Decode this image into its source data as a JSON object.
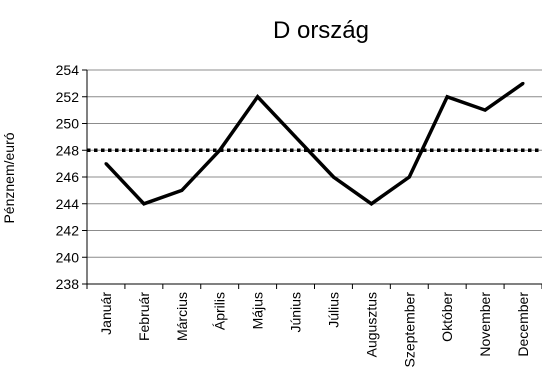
{
  "chart_data": {
    "type": "line",
    "title": "D ország",
    "xlabel": "",
    "ylabel": "Pénznem/euró",
    "categories": [
      "Január",
      "Február",
      "Március",
      "Április",
      "Május",
      "Június",
      "Július",
      "Augusztus",
      "Szeptember",
      "Október",
      "November",
      "December"
    ],
    "series": [
      {
        "values": [
          247,
          244,
          245,
          248,
          252,
          249,
          246,
          244,
          246,
          252,
          251,
          253
        ]
      }
    ],
    "reference_line": {
      "value": 248,
      "style": "dotted"
    },
    "ylim": [
      238,
      254
    ],
    "yticks": [
      238,
      240,
      242,
      244,
      246,
      248,
      250,
      252,
      254
    ],
    "grid": true,
    "legend": false
  }
}
